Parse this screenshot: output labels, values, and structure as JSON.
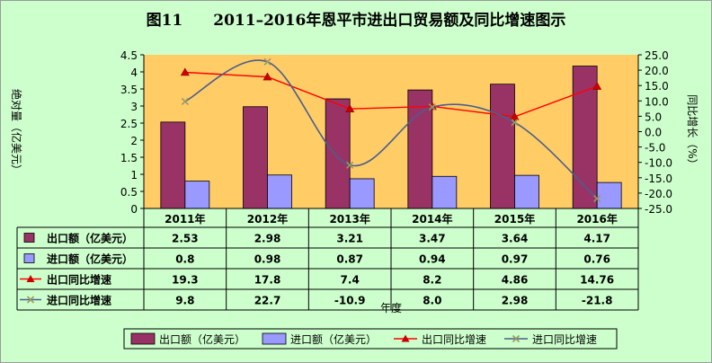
{
  "title": "图11　　2011–2016年恩平市进出口贸易额及同比增速图示",
  "chart_data": {
    "type": "bar",
    "categories": [
      "2011年",
      "2012年",
      "2013年",
      "2014年",
      "2015年",
      "2016年"
    ],
    "series": [
      {
        "name": "出口额（亿美元）",
        "kind": "bar",
        "axis": "left",
        "color": "#993366",
        "values": [
          2.53,
          2.98,
          3.21,
          3.47,
          3.64,
          4.17
        ],
        "labels": [
          "2.53",
          "2.98",
          "3.21",
          "3.47",
          "3.64",
          "4.17"
        ]
      },
      {
        "name": "进口额（亿美元）",
        "kind": "bar",
        "axis": "left",
        "color": "#9999ff",
        "values": [
          0.8,
          0.98,
          0.87,
          0.94,
          0.97,
          0.76
        ],
        "labels": [
          "0.8",
          "0.98",
          "0.87",
          "0.94",
          "0.97",
          "0.76"
        ]
      },
      {
        "name": "出口同比增速",
        "kind": "line",
        "axis": "right",
        "color": "#ff0000",
        "marker": "triangle",
        "values": [
          19.3,
          17.8,
          7.4,
          8.2,
          4.86,
          14.76
        ],
        "labels": [
          "19.3",
          "17.8",
          "7.4",
          "8.2",
          "4.86",
          "14.76"
        ]
      },
      {
        "name": "进口同比增速",
        "kind": "line",
        "axis": "right",
        "color": "#4a5e8c",
        "marker": "x",
        "smooth": true,
        "values": [
          9.8,
          22.7,
          -10.9,
          8.0,
          2.98,
          -21.8
        ],
        "labels": [
          "9.8",
          "22.7",
          "-10.9",
          "8.0",
          "2.98",
          "-21.8"
        ]
      }
    ],
    "ylabel": "绝对量（亿美元）",
    "ylabel_right": "同比增长（%）",
    "xlabel": "年度",
    "ylim": [
      0,
      4.5
    ],
    "ylim_right": [
      -25,
      25
    ],
    "yticks": [
      "0",
      "0.5",
      "1",
      "1.5",
      "2",
      "2.5",
      "3",
      "3.5",
      "4",
      "4.5"
    ],
    "yticks_right": [
      "-25.0",
      "-20.0",
      "-15.0",
      "-10.0",
      "-5.0",
      "0.0",
      "5.0",
      "10.0",
      "15.0",
      "20.0",
      "25.0"
    ],
    "plot_background": "#ffcc66",
    "data_table": true,
    "legend": "bottom",
    "grid": false
  }
}
